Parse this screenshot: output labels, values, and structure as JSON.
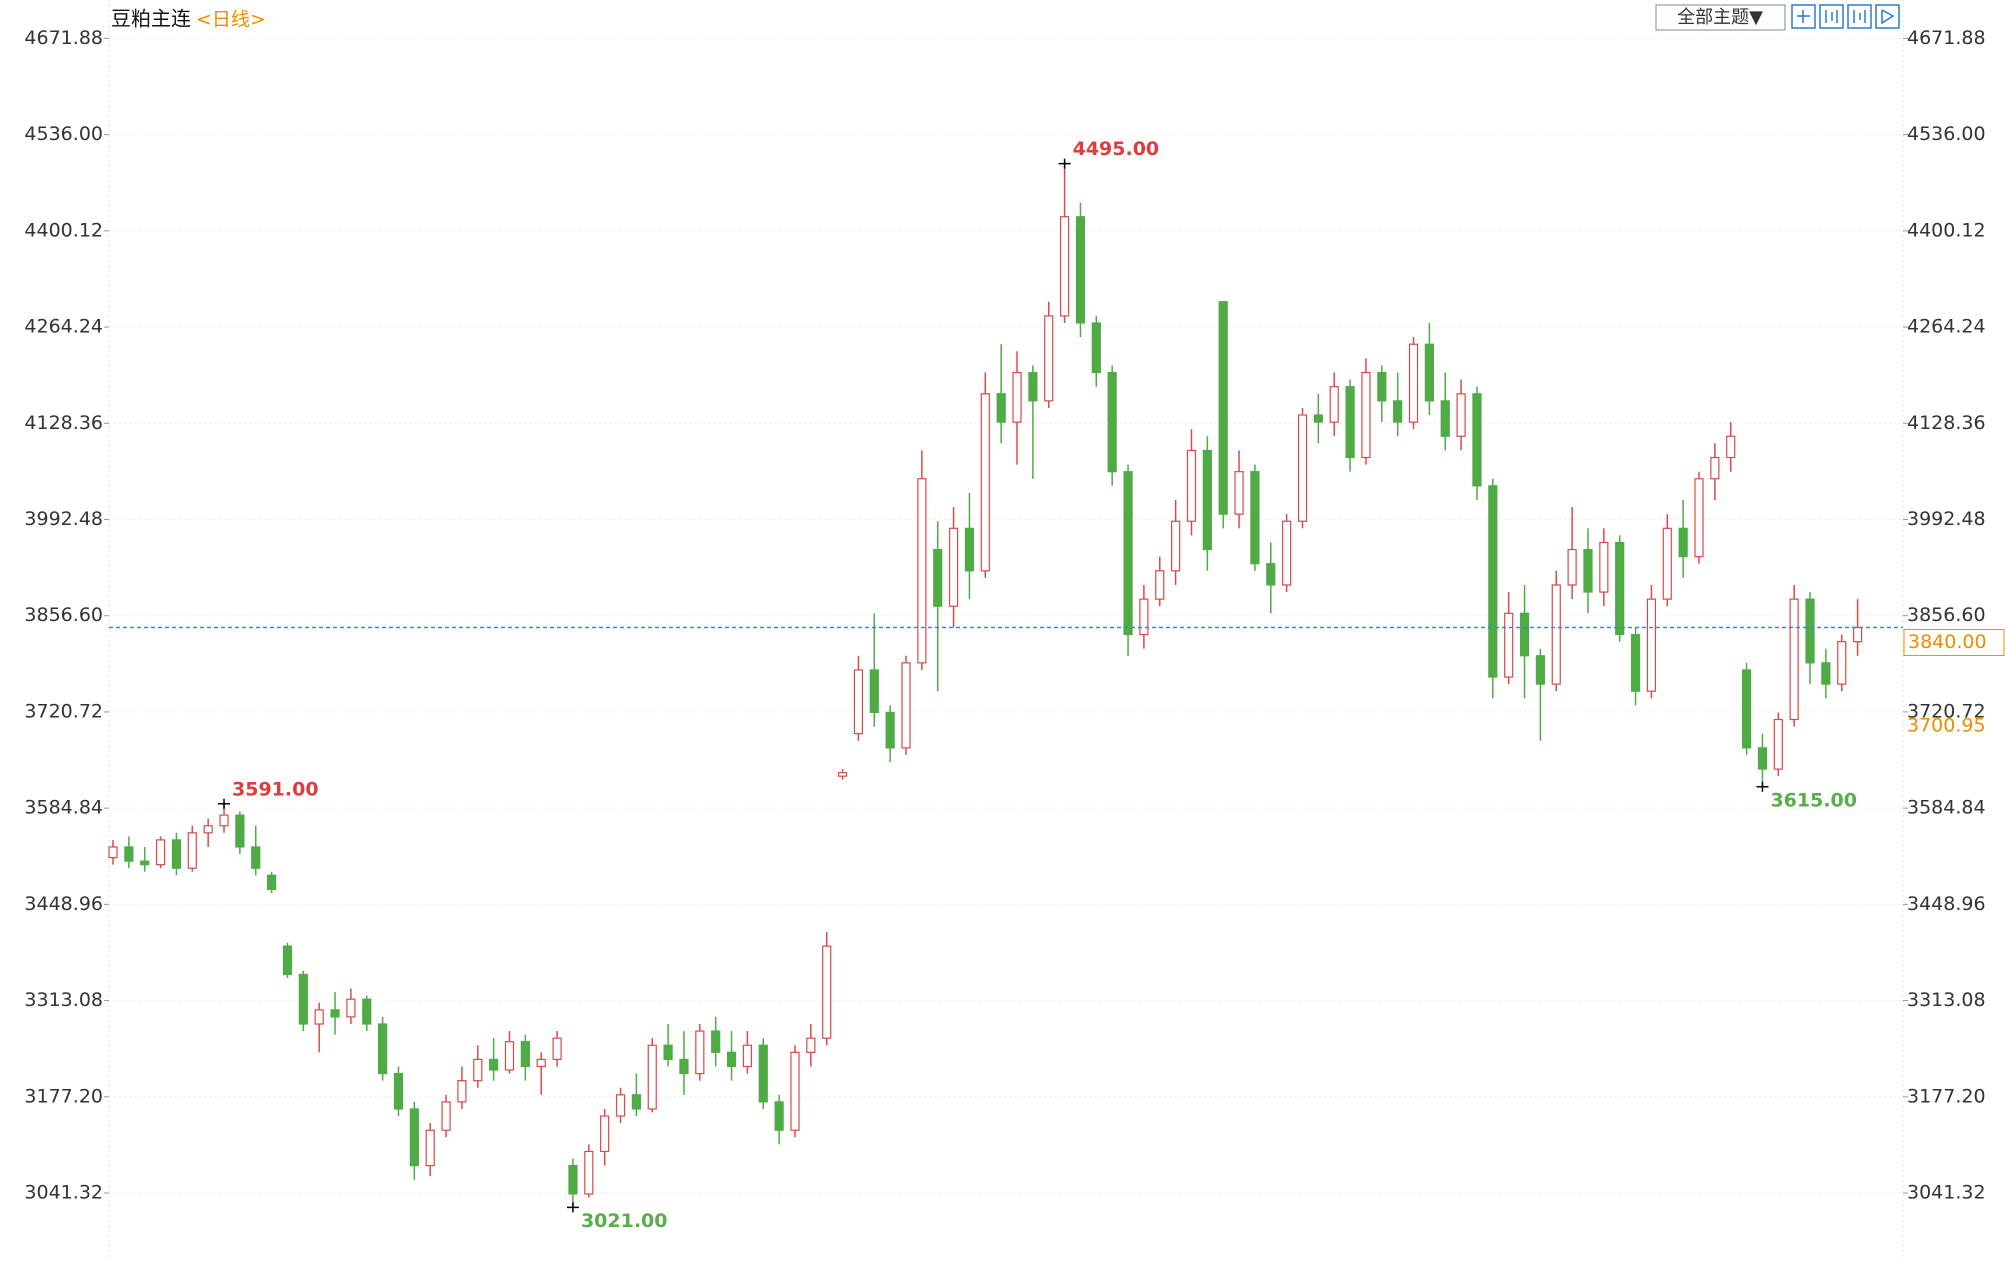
{
  "chart_data": {
    "type": "candlestick",
    "title": "豆粕主连",
    "subtitle": "<日线>",
    "ylim": [
      2945.3,
      4726.1
    ],
    "yticks": [
      4671.88,
      {
        "value": 4536.0,
        "label": "4536.00"
      },
      4400.12,
      4264.24,
      4128.36,
      3992.48,
      {
        "value": 3856.6,
        "label": "3856.60"
      },
      3720.72,
      3584.84,
      3448.96,
      3313.08,
      {
        "value": 3177.2,
        "label": "3177.20"
      },
      3041.32
    ],
    "grid": true,
    "up_color": "#d94a4a",
    "down_color": "#4eab45",
    "ohlc": [
      [
        3515,
        3540,
        3505,
        3530
      ],
      [
        3530,
        3545,
        3500,
        3510
      ],
      [
        3510,
        3530,
        3495,
        3505
      ],
      [
        3505,
        3545,
        3500,
        3540
      ],
      [
        3540,
        3550,
        3490,
        3500
      ],
      [
        3500,
        3560,
        3495,
        3550
      ],
      [
        3550,
        3570,
        3530,
        3560
      ],
      [
        3560,
        3591,
        3550,
        3575
      ],
      [
        3575,
        3580,
        3520,
        3530
      ],
      [
        3530,
        3560,
        3490,
        3500
      ],
      [
        3490,
        3495,
        3465,
        3470
      ],
      [
        3390,
        3395,
        3345,
        3350
      ],
      [
        3350,
        3355,
        3270,
        3280
      ],
      [
        3280,
        3310,
        3240,
        3300
      ],
      [
        3300,
        3325,
        3265,
        3290
      ],
      [
        3290,
        3330,
        3280,
        3315
      ],
      [
        3315,
        3320,
        3270,
        3280
      ],
      [
        3280,
        3290,
        3200,
        3210
      ],
      [
        3210,
        3220,
        3150,
        3160
      ],
      [
        3160,
        3170,
        3060,
        3080
      ],
      [
        3080,
        3140,
        3065,
        3130
      ],
      [
        3130,
        3180,
        3120,
        3170
      ],
      [
        3170,
        3220,
        3160,
        3200
      ],
      [
        3200,
        3250,
        3190,
        3230
      ],
      [
        3230,
        3260,
        3200,
        3215
      ],
      [
        3215,
        3270,
        3210,
        3255
      ],
      [
        3255,
        3265,
        3200,
        3220
      ],
      [
        3220,
        3240,
        3180,
        3230
      ],
      [
        3230,
        3270,
        3220,
        3260
      ],
      [
        3080,
        3090,
        3021,
        3040
      ],
      [
        3040,
        3110,
        3035,
        3100
      ],
      [
        3100,
        3160,
        3080,
        3150
      ],
      [
        3150,
        3190,
        3140,
        3180
      ],
      [
        3180,
        3210,
        3150,
        3160
      ],
      [
        3160,
        3260,
        3155,
        3250
      ],
      [
        3250,
        3280,
        3220,
        3230
      ],
      [
        3230,
        3270,
        3180,
        3210
      ],
      [
        3210,
        3280,
        3200,
        3270
      ],
      [
        3270,
        3290,
        3220,
        3240
      ],
      [
        3240,
        3270,
        3200,
        3220
      ],
      [
        3220,
        3270,
        3210,
        3250
      ],
      [
        3250,
        3260,
        3160,
        3170
      ],
      [
        3170,
        3180,
        3110,
        3130
      ],
      [
        3130,
        3250,
        3120,
        3240
      ],
      [
        3240,
        3280,
        3220,
        3260
      ],
      [
        3260,
        3410,
        3250,
        3390
      ],
      [
        3630,
        3640,
        3625,
        3635
      ],
      [
        3690,
        3800,
        3680,
        3780
      ],
      [
        3780,
        3860,
        3700,
        3720
      ],
      [
        3720,
        3730,
        3650,
        3670
      ],
      [
        3670,
        3800,
        3660,
        3790
      ],
      [
        3790,
        4090,
        3780,
        4050
      ],
      [
        3950,
        3990,
        3750,
        3870
      ],
      [
        3870,
        4010,
        3840,
        3980
      ],
      [
        3980,
        4030,
        3880,
        3920
      ],
      [
        3920,
        4200,
        3910,
        4170
      ],
      [
        4170,
        4240,
        4100,
        4130
      ],
      [
        4130,
        4230,
        4070,
        4200
      ],
      [
        4200,
        4210,
        4050,
        4160
      ],
      [
        4160,
        4300,
        4150,
        4280
      ],
      [
        4280,
        4495,
        4270,
        4420
      ],
      [
        4420,
        4440,
        4250,
        4270
      ],
      [
        4270,
        4280,
        4180,
        4200
      ],
      [
        4200,
        4210,
        4040,
        4060
      ],
      [
        4060,
        4070,
        3800,
        3830
      ],
      [
        3830,
        3900,
        3810,
        3880
      ],
      [
        3880,
        3940,
        3870,
        3920
      ],
      [
        3920,
        4020,
        3900,
        3990
      ],
      [
        3990,
        4120,
        3970,
        4090
      ],
      [
        4090,
        4110,
        3920,
        3950
      ],
      [
        4300,
        4300,
        3980,
        4000
      ],
      [
        4000,
        4090,
        3980,
        4060
      ],
      [
        4060,
        4070,
        3920,
        3930
      ],
      [
        3930,
        3960,
        3860,
        3900
      ],
      [
        3900,
        4000,
        3890,
        3990
      ],
      [
        3990,
        4150,
        3980,
        4140
      ],
      [
        4140,
        4170,
        4100,
        4130
      ],
      [
        4130,
        4200,
        4110,
        4180
      ],
      [
        4180,
        4190,
        4060,
        4080
      ],
      [
        4080,
        4220,
        4070,
        4200
      ],
      [
        4200,
        4210,
        4130,
        4160
      ],
      [
        4160,
        4200,
        4110,
        4130
      ],
      [
        4130,
        4250,
        4120,
        4240
      ],
      [
        4240,
        4270,
        4140,
        4160
      ],
      [
        4160,
        4200,
        4090,
        4110
      ],
      [
        4110,
        4190,
        4090,
        4170
      ],
      [
        4170,
        4180,
        4020,
        4040
      ],
      [
        4040,
        4050,
        3740,
        3770
      ],
      [
        3770,
        3890,
        3760,
        3860
      ],
      [
        3860,
        3900,
        3740,
        3800
      ],
      [
        3800,
        3810,
        3680,
        3760
      ],
      [
        3760,
        3920,
        3750,
        3900
      ],
      [
        3900,
        4010,
        3880,
        3950
      ],
      [
        3950,
        3980,
        3860,
        3890
      ],
      [
        3890,
        3980,
        3870,
        3960
      ],
      [
        3960,
        3970,
        3820,
        3830
      ],
      [
        3830,
        3840,
        3730,
        3750
      ],
      [
        3750,
        3900,
        3740,
        3880
      ],
      [
        3880,
        4000,
        3870,
        3980
      ],
      [
        3980,
        4020,
        3910,
        3940
      ],
      [
        3940,
        4060,
        3930,
        4050
      ],
      [
        4050,
        4100,
        4020,
        4080
      ],
      [
        4080,
        4130,
        4060,
        4110
      ],
      [
        3780,
        3790,
        3660,
        3670
      ],
      [
        3670,
        3690,
        3615,
        3640
      ],
      [
        3640,
        3720,
        3630,
        3710
      ],
      [
        3710,
        3900,
        3700,
        3880
      ],
      [
        3880,
        3890,
        3760,
        3790
      ],
      [
        3790,
        3810,
        3740,
        3760
      ],
      [
        3760,
        3830,
        3750,
        3820
      ],
      [
        3820,
        3880,
        3800,
        3840
      ]
    ],
    "annotations": [
      {
        "value": 3591,
        "label": "3591.00",
        "kind": "high"
      },
      {
        "value": 3021,
        "label": "3021.00",
        "kind": "low"
      },
      {
        "value": 4495,
        "label": "4495.00",
        "kind": "high"
      },
      {
        "value": 3615,
        "label": "3615.00",
        "kind": "low"
      }
    ],
    "last_price": {
      "value": 3840,
      "label": "3840.00"
    },
    "reference_price": {
      "value": 3700.95,
      "label": "3700.95"
    }
  },
  "toolbar": {
    "theme_button": "全部主题▼"
  }
}
